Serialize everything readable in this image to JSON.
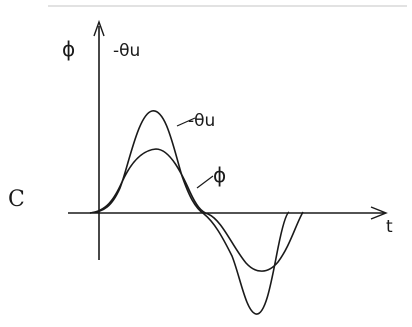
{
  "diagram": {
    "y_axis_label": "ϕ",
    "y_axis_label_secondary": "-θu",
    "x_axis_label": "t",
    "curve_labels": {
      "theta_u": "-θu",
      "phi": "ϕ"
    },
    "side_text": "C"
  },
  "colors": {
    "background": "#ffffff",
    "ink": "#1a1a1a",
    "top_rule": "#d8d8d8"
  }
}
